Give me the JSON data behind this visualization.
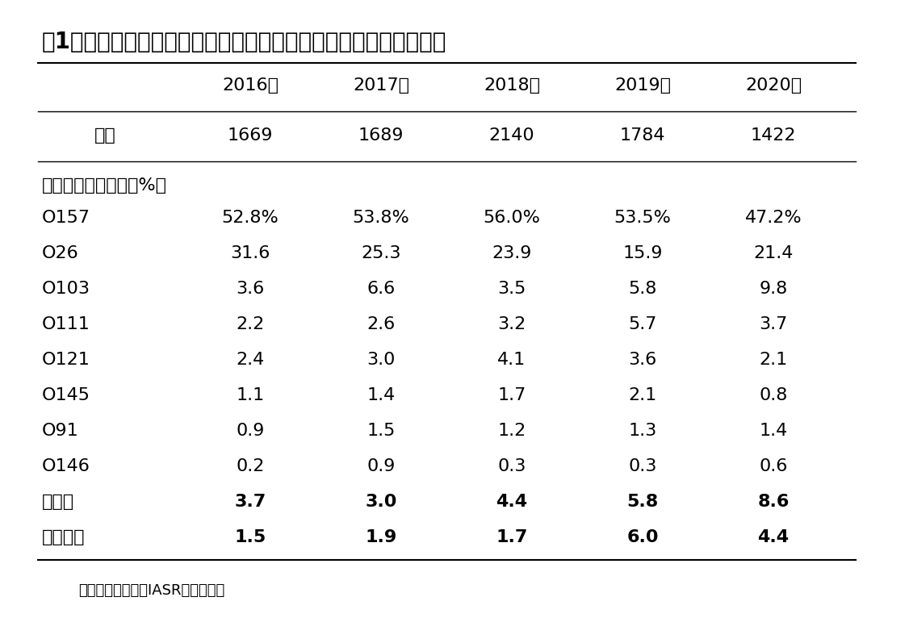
{
  "title": "表1．わが国で分離されたヒト由来腸管出血性大腸菌の主な血清群",
  "years": [
    "2016年",
    "2017年",
    "2018年",
    "2019年",
    "2020年"
  ],
  "totals": [
    "1669",
    "1689",
    "2140",
    "1784",
    "1422"
  ],
  "total_label": "総数",
  "section_label": "各血清群の分離数（%）",
  "rows": [
    {
      "label": "O157",
      "values": [
        "52.8%",
        "53.8%",
        "56.0%",
        "53.5%",
        "47.2%"
      ],
      "bold": false
    },
    {
      "label": "O26",
      "values": [
        "31.6",
        "25.3",
        "23.9",
        "15.9",
        "21.4"
      ],
      "bold": false
    },
    {
      "label": "O103",
      "values": [
        "3.6",
        "6.6",
        "3.5",
        "5.8",
        "9.8"
      ],
      "bold": false
    },
    {
      "label": "O111",
      "values": [
        "2.2",
        "2.6",
        "3.2",
        "5.7",
        "3.7"
      ],
      "bold": false
    },
    {
      "label": "O121",
      "values": [
        "2.4",
        "3.0",
        "4.1",
        "3.6",
        "2.1"
      ],
      "bold": false
    },
    {
      "label": "O145",
      "values": [
        "1.1",
        "1.4",
        "1.7",
        "2.1",
        "0.8"
      ],
      "bold": false
    },
    {
      "label": "O91",
      "values": [
        "0.9",
        "1.5",
        "1.2",
        "1.3",
        "1.4"
      ],
      "bold": false
    },
    {
      "label": "O146",
      "values": [
        "0.2",
        "0.9",
        "0.3",
        "0.3",
        "0.6"
      ],
      "bold": false
    },
    {
      "label": "その他",
      "values": [
        "3.7",
        "3.0",
        "4.4",
        "5.8",
        "8.6"
      ],
      "bold": true
    },
    {
      "label": "型別不能",
      "values": [
        "1.5",
        "1.9",
        "1.7",
        "6.0",
        "4.4"
      ],
      "bold": true
    }
  ],
  "footnote": "国立感染症研究所IASRを基に作成",
  "bg_color": "#ffffff",
  "text_color": "#000000",
  "line_color": "#000000",
  "title_fontsize": 20,
  "header_fontsize": 16,
  "cell_fontsize": 16,
  "note_fontsize": 13
}
